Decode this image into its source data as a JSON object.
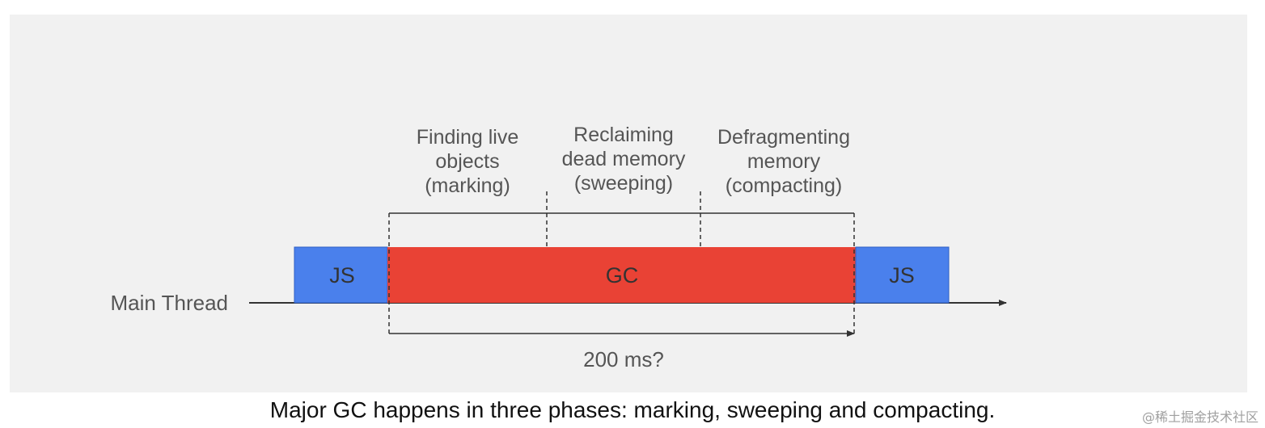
{
  "diagram": {
    "thread_label": "Main Thread",
    "blocks": [
      {
        "label": "JS",
        "kind": "js"
      },
      {
        "label": "GC",
        "kind": "gc"
      },
      {
        "label": "JS",
        "kind": "js"
      }
    ],
    "phases": [
      {
        "line1": "Finding live",
        "line2": "objects",
        "line3": "(marking)"
      },
      {
        "line1": "Reclaiming",
        "line2": "dead memory",
        "line3": "(sweeping)"
      },
      {
        "line1": "Defragmenting",
        "line2": "memory",
        "line3": "(compacting)"
      }
    ],
    "duration_label": "200 ms?",
    "colors": {
      "js": "#4a80ec",
      "gc": "#e94235",
      "text": "#555555"
    }
  },
  "caption": "Major GC happens in three phases: marking, sweeping and compacting.",
  "watermark": "@稀土掘金技术社区"
}
